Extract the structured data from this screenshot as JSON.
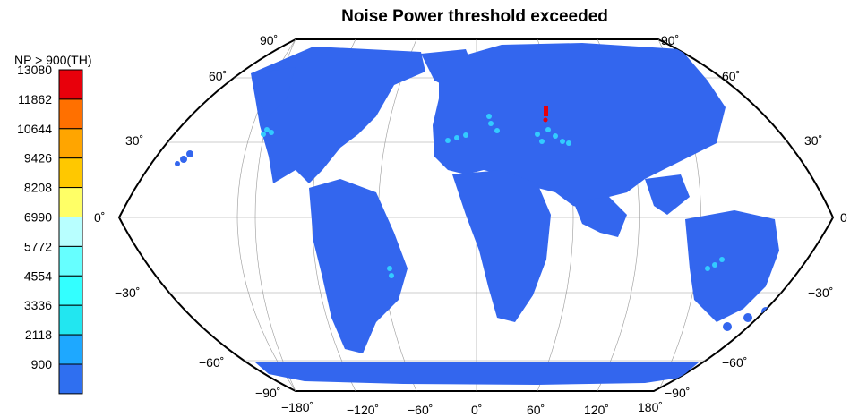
{
  "title": "Noise Power threshold exceeded",
  "legend": {
    "title": "NP > 900(TH)",
    "levels": [
      "13080",
      "11862",
      "10644",
      "9426",
      "8208",
      "6990",
      "5772",
      "4554",
      "3336",
      "2118",
      "900"
    ],
    "colors": [
      "#e8000b",
      "#ff7000",
      "#ffa500",
      "#ffc800",
      "#ffff66",
      "#b8ffff",
      "#66ffff",
      "#33ffff",
      "#22e6f0",
      "#1ea8ff",
      "#2f6ff0"
    ]
  },
  "map": {
    "projection": "Mollweide-like",
    "land_color": "#3366ee",
    "lat_labels_left": [
      "90˚",
      "60˚",
      "30˚",
      "0˚",
      "−30˚",
      "−60˚",
      "−90˚"
    ],
    "lat_labels_right": [
      "90˚",
      "60˚",
      "30˚",
      "0",
      "−30˚",
      "−60˚",
      "−90˚"
    ],
    "lon_labels": [
      "−180˚",
      "−120˚",
      "−60˚",
      "0˚",
      "60˚",
      "120˚",
      "180˚"
    ]
  }
}
